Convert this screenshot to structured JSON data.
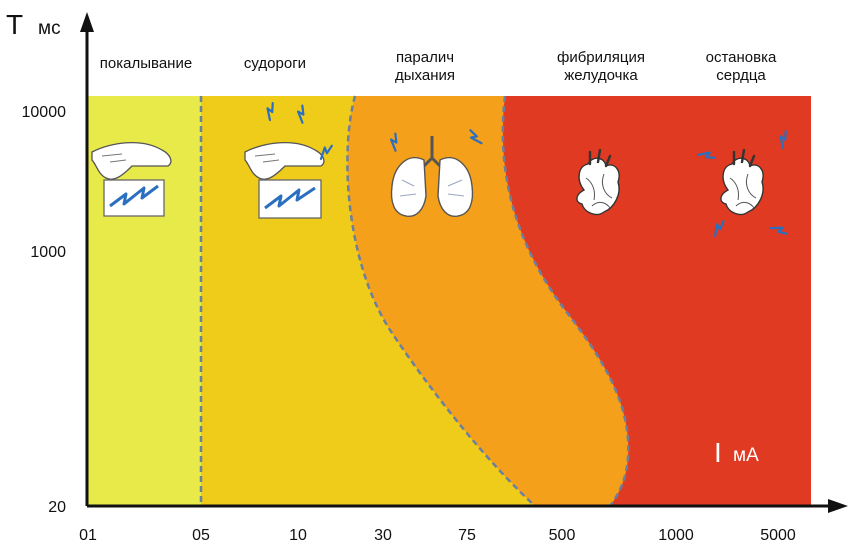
{
  "chart_data": {
    "type": "area",
    "title": "",
    "y_axis": {
      "label": "T",
      "unit": "мс",
      "scale": "log",
      "ticks": [
        "10000",
        "1000",
        "20"
      ]
    },
    "x_axis": {
      "ticks": [
        "01",
        "05",
        "10",
        "30",
        "75",
        "500",
        "1000",
        "5000"
      ]
    },
    "zones": [
      {
        "name": "покалывание",
        "label_lines": [
          "покалывание"
        ],
        "color": "#e8ea4a"
      },
      {
        "name": "судороги",
        "label_lines": [
          "судороги"
        ],
        "color": "#f0cc1a"
      },
      {
        "name": "паралич дыхания",
        "label_lines": [
          "паралич",
          "дыхания"
        ],
        "color": "#f5a01a"
      },
      {
        "name": "фибриляция желудочка",
        "label_lines": [
          "фибриляция",
          "желудочка"
        ],
        "color": "#e03a22"
      },
      {
        "name": "остановка сердца",
        "label_lines": [
          "остановка",
          "сердца"
        ],
        "color": "#e03a22"
      }
    ],
    "annotation": {
      "main": "I",
      "unit": "мА",
      "color": "#ffffff"
    },
    "boundary_color": "#6b7fa0",
    "grid": false
  },
  "icons": [
    "hand-zap-icon",
    "hand-zap-strong-icon",
    "lungs-icon",
    "heart-icon",
    "heart-shock-icon"
  ]
}
